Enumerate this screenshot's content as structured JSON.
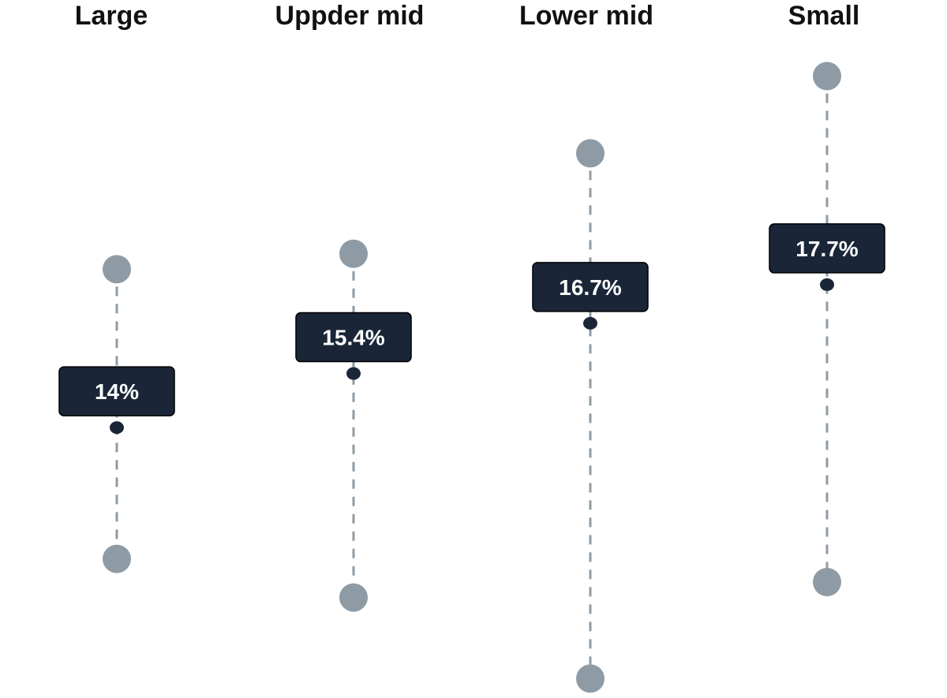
{
  "chart_data": {
    "type": "range-dot",
    "categories": [
      "Large",
      "Uppder mid",
      "Lower mid",
      "Small"
    ],
    "series": [
      {
        "name": "",
        "values": [
          14.0,
          15.4,
          16.7,
          17.7
        ]
      }
    ],
    "labels": [
      "14%",
      "15.4%",
      "16.7%",
      "17.7%"
    ],
    "ranges": [
      {
        "high": 18.1,
        "low": 10.6
      },
      {
        "high": 18.5,
        "low": 9.6
      },
      {
        "high": 21.1,
        "low": 7.5
      },
      {
        "high": 23.1,
        "low": 10.0
      }
    ],
    "title": "",
    "xlabel": "",
    "ylabel": "",
    "ylim": [
      7.1,
      23.6
    ],
    "grid": false,
    "colors": {
      "range": "#8f9ba4",
      "point": "#1a2638",
      "label_bg": "#1a2638",
      "label_text": "#ffffff"
    }
  }
}
